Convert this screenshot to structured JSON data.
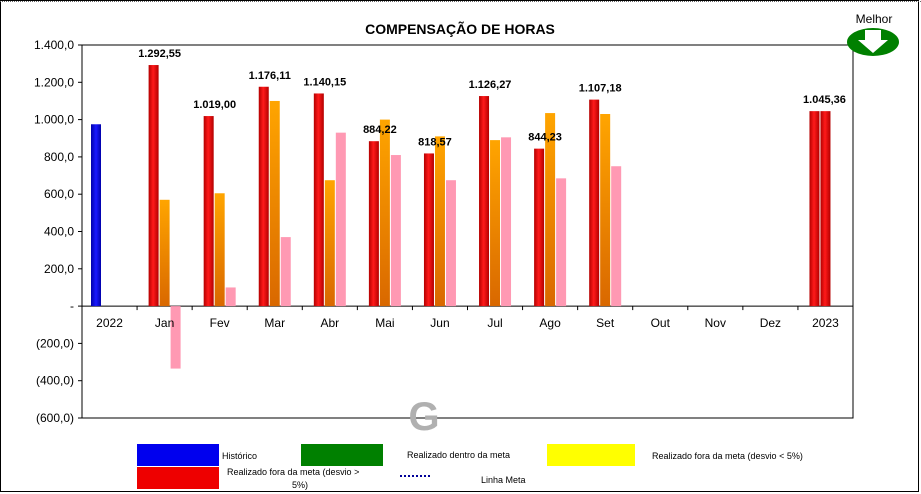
{
  "chart_data": {
    "type": "bar",
    "title": "COMPENSAÇÃO DE HORAS",
    "categories": [
      "2022",
      "Jan",
      "Fev",
      "Mar",
      "Abr",
      "Mai",
      "Jun",
      "Jul",
      "Ago",
      "Set",
      "Out",
      "Nov",
      "Dez",
      "2023"
    ],
    "y_ticks": [
      "1.400,0",
      "1.200,0",
      "1.000,0",
      "800,0",
      "600,0",
      "400,0",
      "200,0",
      "-",
      "(200,0)",
      "(400,0)",
      "(600,0)"
    ],
    "ylim": [
      -600,
      1400
    ],
    "grid": false,
    "legend_placement": "bottom",
    "series": [
      {
        "name": "Histórico",
        "color": "#0000ee",
        "values": [
          975,
          null,
          null,
          null,
          null,
          null,
          null,
          null,
          null,
          null,
          null,
          null,
          null,
          null
        ]
      },
      {
        "name": "Realizado fora da meta (desvio > 5%)",
        "color": "#ee0000",
        "values": [
          null,
          1292.55,
          1019.0,
          1176.11,
          1140.15,
          884.22,
          818.57,
          1126.27,
          844.23,
          1107.18,
          null,
          null,
          null,
          1045.36
        ]
      },
      {
        "values": [
          null,
          570,
          605,
          1100,
          675,
          1000,
          910,
          890,
          1035,
          1030,
          null,
          null,
          null,
          1045.36
        ],
        "color_top": "#ffa500",
        "color_bottom": "#d96800"
      },
      {
        "values": [
          null,
          -335,
          100,
          370,
          930,
          810,
          675,
          905,
          685,
          750,
          null,
          null,
          null,
          null
        ],
        "color": "#ff99b3"
      }
    ],
    "data_labels": [
      "",
      "1.292,55",
      "1.019,00",
      "1.176,11",
      "1.140,15",
      "884,22",
      "818,57",
      "1.126,27",
      "844,23",
      "1.107,18",
      "",
      "",
      "",
      "1.045,36"
    ],
    "annotation": "Melhor"
  },
  "legend": [
    {
      "name": "Histórico",
      "color": "#0000ee"
    },
    {
      "name": "Realizado dentro da meta",
      "color": "#008000"
    },
    {
      "name": "Realizado fora da meta (desvio < 5%)",
      "color": "#ffff00"
    },
    {
      "name": "Realizado fora da meta (desvio > 5%)",
      "color": "#ee0000"
    },
    {
      "name": "Linha Meta",
      "color": "#000099"
    }
  ]
}
